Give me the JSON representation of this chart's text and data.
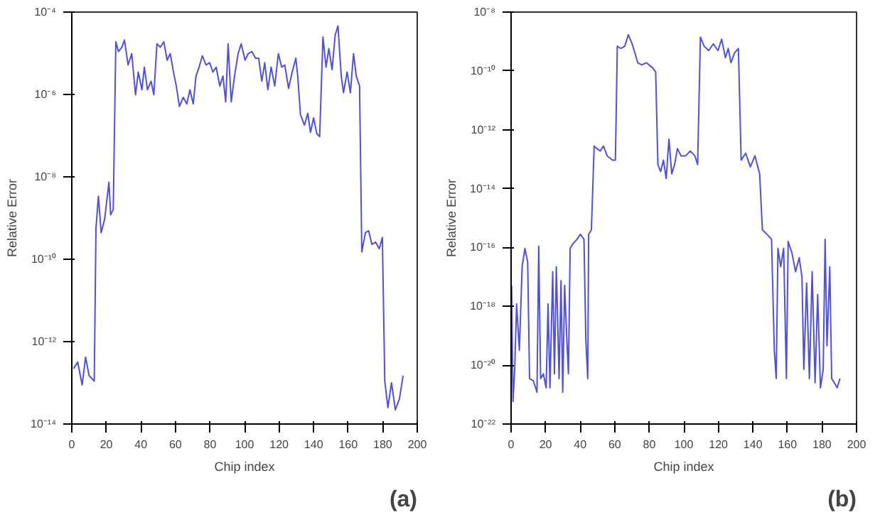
{
  "chart_data": [
    {
      "type": "line",
      "xlabel": "Chip index",
      "ylabel": "Relative Error",
      "annotations": [
        "(a)"
      ],
      "log": "y",
      "grid": false,
      "xlim": [
        0,
        200
      ],
      "xticks": [
        0,
        20,
        40,
        60,
        80,
        100,
        120,
        140,
        160,
        180,
        200
      ],
      "ylim": [
        1e-14,
        0.0001
      ],
      "yticks": [
        {
          "value": 1e-14,
          "label": "10⁻¹⁴"
        },
        {
          "value": 1e-12,
          "label": "10⁻¹²"
        },
        {
          "value": 1e-10,
          "label": "10⁻¹⁰"
        },
        {
          "value": 1e-08,
          "label": "10⁻⁸"
        },
        {
          "value": 1e-06,
          "label": "10⁻⁶"
        },
        {
          "value": 0.0001,
          "label": "10⁻⁴"
        }
      ],
      "series": [
        {
          "color": "#4f4fe6",
          "x": [
            1,
            3.4,
            6,
            8,
            10,
            13,
            14,
            15.4,
            17,
            19,
            21.5,
            22.5,
            24,
            25.5,
            27,
            29,
            30.5,
            32.6,
            34.7,
            36.9,
            38.5,
            40.6,
            42,
            43.8,
            45.9,
            47.5,
            49.3,
            51.2,
            53.3,
            55.2,
            57,
            58.6,
            60.5,
            62.3,
            64.5,
            66.6,
            68.4,
            70.3,
            71.9,
            73.7,
            75.6,
            77.7,
            79.8,
            81.7,
            83.6,
            85.7,
            87.5,
            89.1,
            90.5,
            92.3,
            94.2,
            96.3,
            98.1,
            100.3,
            102.1,
            104.2,
            106.4,
            108.2,
            110,
            111.7,
            113.5,
            115.4,
            117.5,
            119.6,
            121.5,
            123.3,
            125.5,
            127.6,
            129.7,
            130.8,
            132.4,
            134.7,
            136.6,
            138.2,
            140,
            141.9,
            143.5,
            145.4,
            147.2,
            148.8,
            150.7,
            152.5,
            154.1,
            156,
            157.3,
            159.4,
            161.3,
            163.1,
            164.7,
            166.6,
            167.9,
            170,
            171.9,
            173.7,
            175.9,
            178,
            179.8,
            181.2,
            183,
            185.1,
            187.3,
            189.7,
            191.8
          ],
          "values": [
            2.2e-13,
            3.2e-13,
            8.9e-14,
            4.2e-13,
            1.5e-13,
            1.1e-13,
            5.6e-10,
            3.4e-09,
            4.4e-10,
            9.3e-10,
            7.4e-09,
            1.2e-09,
            1.6e-09,
            1.9e-05,
            1.1e-05,
            1.4e-05,
            2.1e-05,
            5.2e-06,
            9.8e-06,
            9.8e-07,
            3.5e-06,
            1.3e-06,
            4.6e-06,
            1.3e-06,
            2.1e-06,
            9.8e-07,
            1.7e-05,
            1.4e-05,
            1.9e-05,
            6.8e-06,
            9.8e-06,
            4e-06,
            1.6e-06,
            5.1e-07,
            8.5e-07,
            5.9e-07,
            1.3e-06,
            5.9e-07,
            2.8e-06,
            4.6e-06,
            8.7e-06,
            5.2e-06,
            5.9e-06,
            3.5e-06,
            4.6e-06,
            1.6e-06,
            2.8e-06,
            6.6e-07,
            1.7e-05,
            6.6e-07,
            2.8e-06,
            9.8e-06,
            1.7e-05,
            6.8e-06,
            9.8e-06,
            1.1e-05,
            7.6e-06,
            7.6e-06,
            2.1e-06,
            5.9e-06,
            1.3e-06,
            4.6e-06,
            1.6e-06,
            9.8e-06,
            4.6e-06,
            5.2e-06,
            1.4e-06,
            3.5e-06,
            7.6e-06,
            2.8e-06,
            3.2e-07,
            1.8e-07,
            3.5e-07,
            1.2e-07,
            2.7e-07,
            1.1e-07,
            9.5e-08,
            2.5e-05,
            4.6e-06,
            1.3e-05,
            4e-06,
            2.8e-05,
            4.6e-05,
            2.8e-06,
            1.1e-06,
            3.5e-06,
            1.1e-06,
            9.8e-06,
            2.8e-06,
            1.6e-06,
            1.5e-10,
            4.4e-10,
            4.9e-10,
            2.3e-10,
            2.6e-10,
            1.8e-10,
            3.4e-10,
            1.1e-13,
            2.5e-14,
            1e-13,
            2.2e-14,
            4.1e-14,
            1.5e-13
          ]
        }
      ]
    },
    {
      "type": "line",
      "xlabel": "Chip index",
      "ylabel": "Relative Error",
      "annotations": [
        "(b)"
      ],
      "log": "y",
      "grid": false,
      "xlim": [
        0,
        200
      ],
      "xticks": [
        0,
        20,
        40,
        60,
        80,
        100,
        120,
        140,
        160,
        180,
        200
      ],
      "ylim": [
        1e-22,
        1e-08
      ],
      "yticks": [
        {
          "value": 1e-22,
          "label": "10⁻²²"
        },
        {
          "value": 1e-20,
          "label": "10⁻²⁰"
        },
        {
          "value": 1e-18,
          "label": "10⁻¹⁸"
        },
        {
          "value": 1e-16,
          "label": "10⁻¹⁶"
        },
        {
          "value": 1e-14,
          "label": "10⁻¹⁴"
        },
        {
          "value": 1e-12,
          "label": "10⁻¹²"
        },
        {
          "value": 1e-10,
          "label": "10⁻¹⁰"
        },
        {
          "value": 1e-08,
          "label": "10⁻⁸"
        }
      ],
      "series": [
        {
          "color": "#4f4fe6",
          "x": [
            0.3,
            1.1,
            2.1,
            3.2,
            4.8,
            6.4,
            8,
            9.6,
            10.7,
            12.8,
            15,
            16,
            17.1,
            18.7,
            20.3,
            21.4,
            22.5,
            24.1,
            25.1,
            26.2,
            27.8,
            28.9,
            29.9,
            31,
            32.1,
            33.2,
            34.2,
            35.6,
            38.2,
            40.1,
            42.2,
            43.3,
            44.4,
            44.9,
            46.5,
            48.1,
            49.7,
            51.6,
            53.5,
            55.6,
            58.8,
            60.4,
            61.5,
            63.6,
            65.8,
            67.9,
            70.1,
            71.7,
            73.3,
            75.7,
            78.3,
            81.8,
            83.7,
            85,
            86.6,
            88.2,
            89.8,
            91.4,
            93,
            94.7,
            96.3,
            98.4,
            101.1,
            103.7,
            106.4,
            108,
            109.6,
            111.8,
            114.4,
            117.1,
            119.8,
            121.9,
            124.1,
            125.7,
            127.3,
            129.4,
            131.6,
            133.2,
            135.8,
            138.5,
            141.2,
            143.9,
            145.5,
            148.1,
            150.8,
            152.4,
            153.5,
            154.5,
            156.1,
            157.8,
            159.4,
            160.4,
            162.6,
            164.7,
            166.8,
            168.4,
            169.5,
            171.1,
            172.7,
            174.3,
            176,
            177.5,
            179.1,
            180.7,
            181.8,
            182.9,
            184.5,
            185.6,
            187.2,
            188.8,
            190.4
          ],
          "values": [
            5.1e-18,
            5.8e-22,
            7.2e-21,
            1.2e-18,
            3.2e-20,
            2.2e-17,
            9.3e-17,
            3.2e-17,
            3.5e-21,
            3e-21,
            1.2e-21,
            1.1e-16,
            3.5e-21,
            5.1e-21,
            1.7e-21,
            1.2e-18,
            1.7e-21,
            1.5e-17,
            5.1e-21,
            2.2e-17,
            3.5e-21,
            7.4e-18,
            1.2e-21,
            5.1e-18,
            1.3e-19,
            5.1e-21,
            9.3e-17,
            1.3e-16,
            1.9e-16,
            2.8e-16,
            1.9e-16,
            6.5e-20,
            3.5e-21,
            2.8e-16,
            4e-16,
            2.8e-13,
            2.3e-13,
            1.9e-13,
            2.8e-13,
            1.3e-13,
            9.3e-14,
            9.3e-14,
            6.9e-10,
            5.8e-10,
            6.9e-10,
            1.7e-09,
            8.3e-10,
            4.1e-10,
            1.9e-10,
            1.6e-10,
            1.9e-10,
            1.3e-10,
            9.3e-11,
            6.6e-14,
            3.8e-14,
            9.3e-14,
            2.2e-14,
            4.8e-13,
            3.2e-14,
            6.6e-14,
            2.3e-13,
            1.3e-13,
            1.3e-13,
            1.9e-13,
            1.3e-13,
            6.6e-14,
            1.4e-09,
            6.9e-10,
            4.9e-10,
            8.3e-10,
            4.9e-10,
            1.2e-09,
            2.8e-10,
            5.8e-10,
            1.9e-10,
            4.1e-10,
            5.8e-10,
            9.3e-14,
            1.6e-13,
            5.5e-14,
            1.3e-13,
            3.2e-14,
            4e-16,
            2.8e-16,
            1.9e-16,
            3.2e-20,
            3.5e-21,
            9.3e-17,
            2.2e-17,
            9.3e-17,
            3.5e-21,
            1.6e-16,
            6.5e-17,
            1.5e-17,
            4.5e-17,
            1e-17,
            7.2e-21,
            6.2e-18,
            3.5e-21,
            1.5e-17,
            2.5e-21,
            2.5e-18,
            1.7e-21,
            7.2e-21,
            1.9e-16,
            4.5e-20,
            2.2e-17,
            3.5e-21,
            2.5e-21,
            1.7e-21,
            3.5e-21
          ]
        }
      ]
    }
  ]
}
